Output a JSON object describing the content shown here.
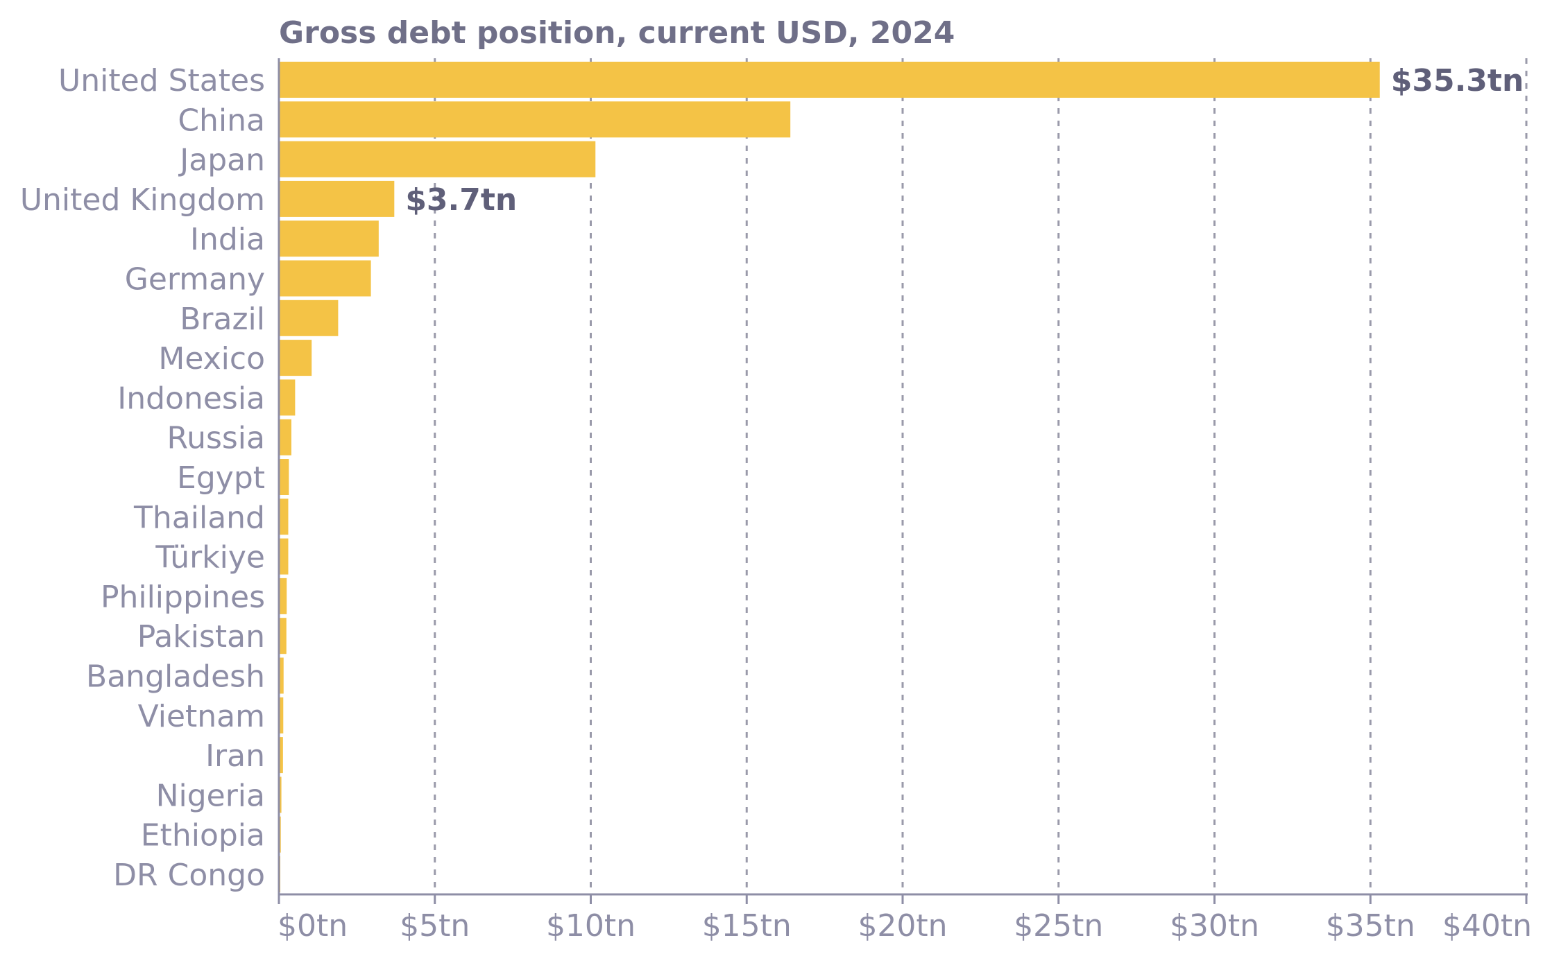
{
  "chart_data": {
    "type": "bar",
    "orientation": "horizontal",
    "title": "Gross debt position, current USD, 2024",
    "categories": [
      "United States",
      "China",
      "Japan",
      "United Kingdom",
      "India",
      "Germany",
      "Brazil",
      "Mexico",
      "Indonesia",
      "Russia",
      "Egypt",
      "Thailand",
      "Türkiye",
      "Philippines",
      "Pakistan",
      "Bangladesh",
      "Vietnam",
      "Iran",
      "Nigeria",
      "Ethiopia",
      "DR Congo"
    ],
    "values": [
      35.3,
      16.4,
      10.15,
      3.7,
      3.2,
      2.95,
      1.9,
      1.05,
      0.52,
      0.4,
      0.32,
      0.3,
      0.3,
      0.25,
      0.24,
      0.15,
      0.14,
      0.13,
      0.08,
      0.06,
      0.02
    ],
    "unit": "trillion USD",
    "xlim": [
      0,
      40
    ],
    "x_ticks": [
      "$0tn",
      "$5tn",
      "$10tn",
      "$15tn",
      "$20tn",
      "$25tn",
      "$30tn",
      "$35tn",
      "$40tn"
    ],
    "x_tick_values": [
      0,
      5,
      10,
      15,
      20,
      25,
      30,
      35,
      40
    ],
    "data_labels": [
      {
        "category": "United States",
        "text": "$35.3tn"
      },
      {
        "category": "United Kingdom",
        "text": "$3.7tn"
      }
    ],
    "grid": "vertical dashed",
    "legend": "none",
    "colors": {
      "bar": "#f4c346",
      "text": "#8e8ea6",
      "label": "#5f5f79",
      "grid": "#9a9aaa"
    }
  }
}
